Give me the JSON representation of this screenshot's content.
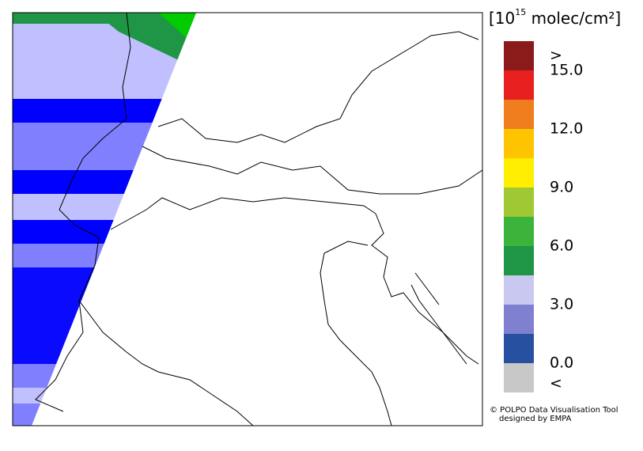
{
  "legend": {
    "title": {
      "prefix": "[10",
      "exponent": "15",
      "suffix": " molec/cm²]"
    },
    "colors": [
      "#8b1a1a",
      "#e82020",
      "#f07d1e",
      "#ffc400",
      "#ffee00",
      "#a0c832",
      "#3cb43c",
      "#1e9646",
      "#c8c8f0",
      "#8080d0",
      "#2850a0",
      "#c8c8c8"
    ],
    "labels": [
      ">",
      "15.0",
      "12.0",
      "9.0",
      "6.0",
      "3.0",
      "0.0",
      "<"
    ]
  },
  "credits": [
    "© POLPO Data Visualisation Tool",
    "designed by EMPA"
  ]
}
